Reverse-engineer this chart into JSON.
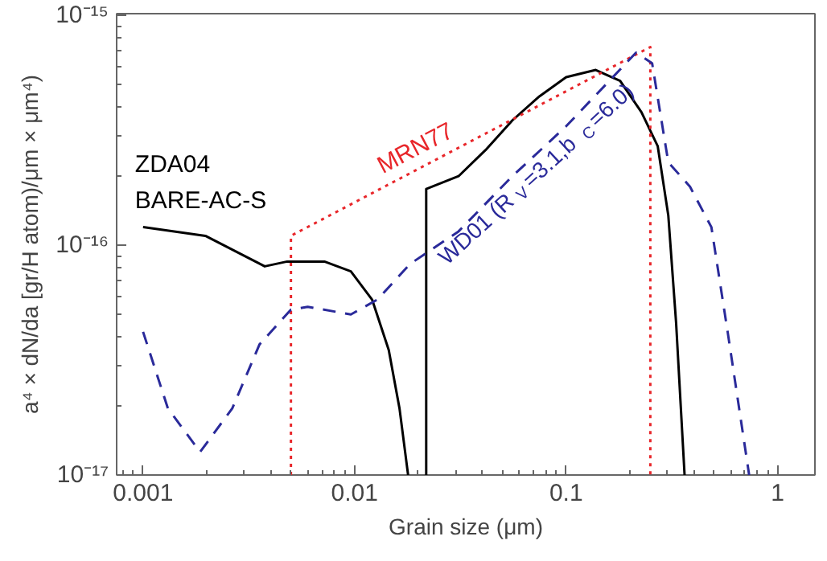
{
  "chart_data": {
    "type": "line",
    "log": "xy",
    "grid": false,
    "xlabel": "Grain size (μm)",
    "ylabel": "a⁴ × dN/da [gr/H atom)/μm × μm⁴)",
    "xlim": [
      0.00075,
      1.5
    ],
    "ylim": [
      1e-17,
      1.02e-15
    ],
    "xticks": [
      0.001,
      0.01,
      0.1,
      1
    ],
    "yticks": [
      {
        "value": 1e-17,
        "label": "10⁻¹⁷"
      },
      {
        "value": 1e-16,
        "label": "10⁻¹⁶"
      },
      {
        "value": 1e-15,
        "label": "10⁻¹⁵"
      }
    ],
    "series": [
      {
        "name": "ZDA04\nBARE-AC-S",
        "color": "#000000",
        "line_style": "solid",
        "x": [
          0.001,
          0.00197,
          0.00376,
          0.0048,
          0.0072,
          0.0096,
          0.0121,
          0.0145,
          0.0163,
          0.0179,
          0.02,
          0.0218,
          0.0218,
          0.031,
          0.0416,
          0.0557,
          0.0747,
          0.1,
          0.138,
          0.18,
          0.227,
          0.271,
          0.304,
          0.331,
          0.363
        ],
        "values": [
          1.2e-16,
          1.1e-16,
          8.1e-17,
          8.5e-17,
          8.5e-17,
          7.7e-17,
          5.8e-17,
          3.5e-17,
          1.95e-17,
          1e-17,
          null,
          1e-17,
          1.76e-16,
          2e-16,
          2.6e-16,
          3.5e-16,
          4.45e-16,
          5.4e-16,
          5.8e-16,
          5.2e-16,
          3.8e-16,
          2.7e-16,
          1.35e-16,
          4.6e-17,
          1e-17
        ]
      },
      {
        "name": "MRN77",
        "color": "#e8262a",
        "line_style": "dotted",
        "x": [
          0.005,
          0.005,
          0.25,
          0.25
        ],
        "values": [
          1e-17,
          1.1e-16,
          7.3e-16,
          1e-17
        ]
      },
      {
        "name": "WD01 (R$_{V}$=3.1,b$_{C}$=6.0)",
        "color": "#2a2a9a",
        "line_style": "dashed",
        "x": [
          0.001,
          0.00131,
          0.00186,
          0.00264,
          0.00355,
          0.005,
          0.006,
          0.0096,
          0.0128,
          0.0183,
          0.031,
          0.0557,
          0.1,
          0.16,
          0.214,
          0.255,
          0.304,
          0.385,
          0.486,
          0.58,
          0.733
        ],
        "values": [
          4.2e-17,
          1.95e-17,
          1.26e-17,
          1.95e-17,
          3.7e-17,
          5.25e-17,
          5.4e-17,
          5e-17,
          5.8e-17,
          8.3e-17,
          1.15e-16,
          2e-16,
          3.3e-16,
          5.2e-16,
          6.9e-16,
          6.2e-16,
          2.3e-16,
          1.8e-16,
          1.2e-16,
          4.2e-17,
          1e-17
        ]
      }
    ]
  }
}
